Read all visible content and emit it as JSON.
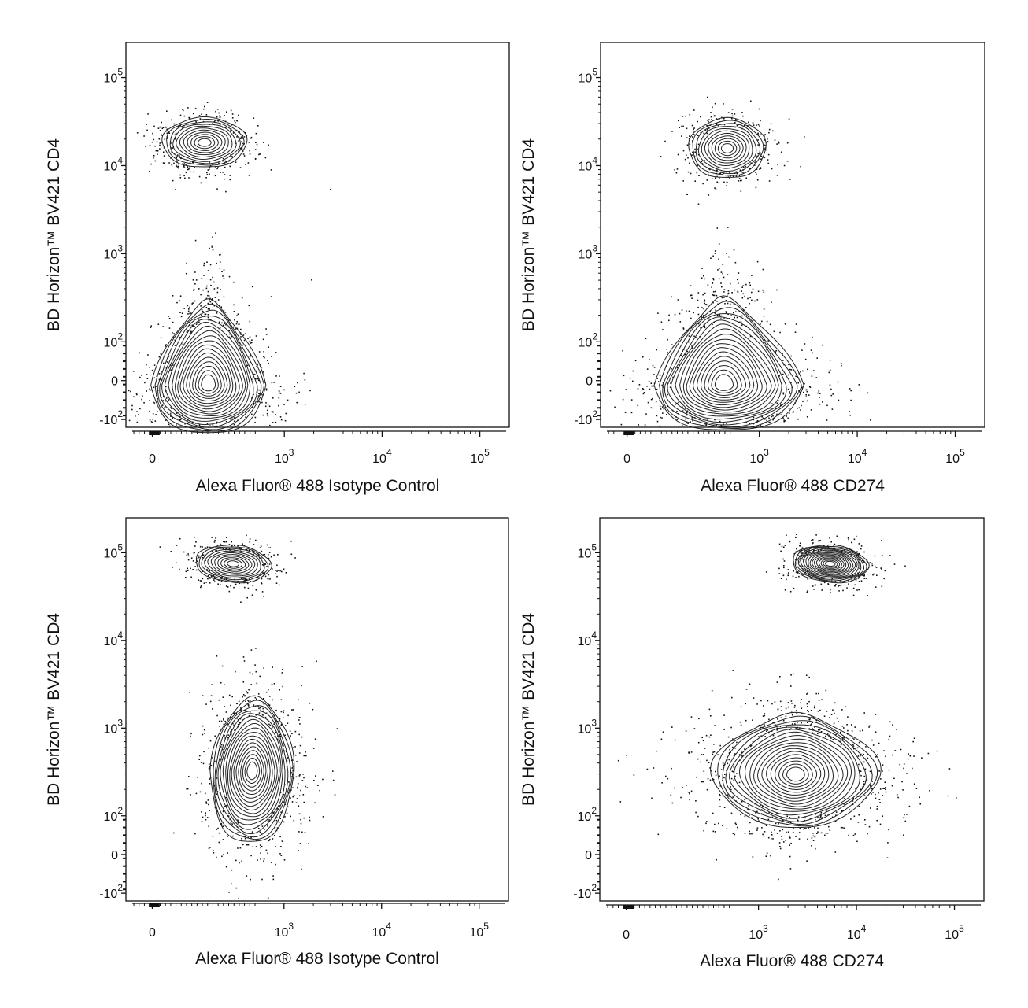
{
  "chart_data": [
    {
      "type": "scatter",
      "subtype": "contour-density",
      "xlabel": "Alexa Fluor® 488 Isotype Control",
      "ylabel": "BD Horizon™ BV421  CD4",
      "x_scale": "biexponential",
      "y_scale": "biexponential",
      "xlim": [
        -200,
        200000
      ],
      "ylim": [
        -200,
        250000
      ],
      "x_ticks": [
        {
          "base": "0",
          "exp": ""
        },
        {
          "base": "10",
          "exp": "3"
        },
        {
          "base": "10",
          "exp": "4"
        },
        {
          "base": "10",
          "exp": "5"
        }
      ],
      "y_ticks": [
        {
          "base": "-10",
          "exp": "2"
        },
        {
          "base": "0",
          "exp": ""
        },
        {
          "base": "10",
          "exp": "2"
        },
        {
          "base": "10",
          "exp": "3"
        },
        {
          "base": "10",
          "exp": "4"
        },
        {
          "base": "10",
          "exp": "5"
        }
      ],
      "grid": false,
      "populations": [
        {
          "x": 250,
          "y": 16000,
          "levels": 11
        },
        {
          "x": 220,
          "y": 40,
          "levels": 18
        }
      ]
    },
    {
      "type": "scatter",
      "subtype": "contour-density",
      "xlabel": "Alexa Fluor® 488 CD274",
      "ylabel": "BD Horizon™ BV421  CD4",
      "x_scale": "biexponential",
      "y_scale": "biexponential",
      "xlim": [
        -200,
        200000
      ],
      "ylim": [
        -200,
        250000
      ],
      "x_ticks": [
        {
          "base": "0",
          "exp": ""
        },
        {
          "base": "10",
          "exp": "3"
        },
        {
          "base": "10",
          "exp": "4"
        },
        {
          "base": "10",
          "exp": "5"
        }
      ],
      "y_ticks": [
        {
          "base": "-10",
          "exp": "2"
        },
        {
          "base": "0",
          "exp": ""
        },
        {
          "base": "10",
          "exp": "2"
        },
        {
          "base": "10",
          "exp": "3"
        },
        {
          "base": "10",
          "exp": "4"
        },
        {
          "base": "10",
          "exp": "5"
        }
      ],
      "grid": false,
      "populations": [
        {
          "x": 350,
          "y": 15000,
          "levels": 11
        },
        {
          "x": 400,
          "y": 40,
          "levels": 18
        }
      ]
    },
    {
      "type": "scatter",
      "subtype": "contour-density",
      "xlabel": "Alexa Fluor® 488 Isotype Control",
      "ylabel": "BD Horizon™ BV421  CD4",
      "x_scale": "biexponential",
      "y_scale": "biexponential",
      "xlim": [
        -200,
        200000
      ],
      "ylim": [
        -200,
        250000
      ],
      "x_ticks": [
        {
          "base": "0",
          "exp": ""
        },
        {
          "base": "10",
          "exp": "3"
        },
        {
          "base": "10",
          "exp": "4"
        },
        {
          "base": "10",
          "exp": "5"
        }
      ],
      "y_ticks": [
        {
          "base": "-10",
          "exp": "2"
        },
        {
          "base": "0",
          "exp": ""
        },
        {
          "base": "10",
          "exp": "2"
        },
        {
          "base": "10",
          "exp": "3"
        },
        {
          "base": "10",
          "exp": "4"
        },
        {
          "base": "10",
          "exp": "5"
        }
      ],
      "grid": false,
      "populations": [
        {
          "x": 300,
          "y": 50000,
          "levels": 11
        },
        {
          "x": 350,
          "y": 450,
          "levels": 18
        }
      ]
    },
    {
      "type": "scatter",
      "subtype": "contour-density",
      "xlabel": "Alexa Fluor® 488 CD274",
      "ylabel": "BD Horizon™ BV421  CD4",
      "x_scale": "biexponential",
      "y_scale": "biexponential",
      "xlim": [
        -200,
        200000
      ],
      "ylim": [
        -200,
        250000
      ],
      "x_ticks": [
        {
          "base": "0",
          "exp": ""
        },
        {
          "base": "10",
          "exp": "3"
        },
        {
          "base": "10",
          "exp": "4"
        },
        {
          "base": "10",
          "exp": "5"
        }
      ],
      "y_ticks": [
        {
          "base": "-10",
          "exp": "2"
        },
        {
          "base": "0",
          "exp": ""
        },
        {
          "base": "10",
          "exp": "2"
        },
        {
          "base": "10",
          "exp": "3"
        },
        {
          "base": "10",
          "exp": "4"
        },
        {
          "base": "10",
          "exp": "5"
        }
      ],
      "grid": false,
      "populations": [
        {
          "x": 4500,
          "y": 50000,
          "levels": 16
        },
        {
          "x": 3000,
          "y": 450,
          "levels": 18
        }
      ]
    }
  ]
}
